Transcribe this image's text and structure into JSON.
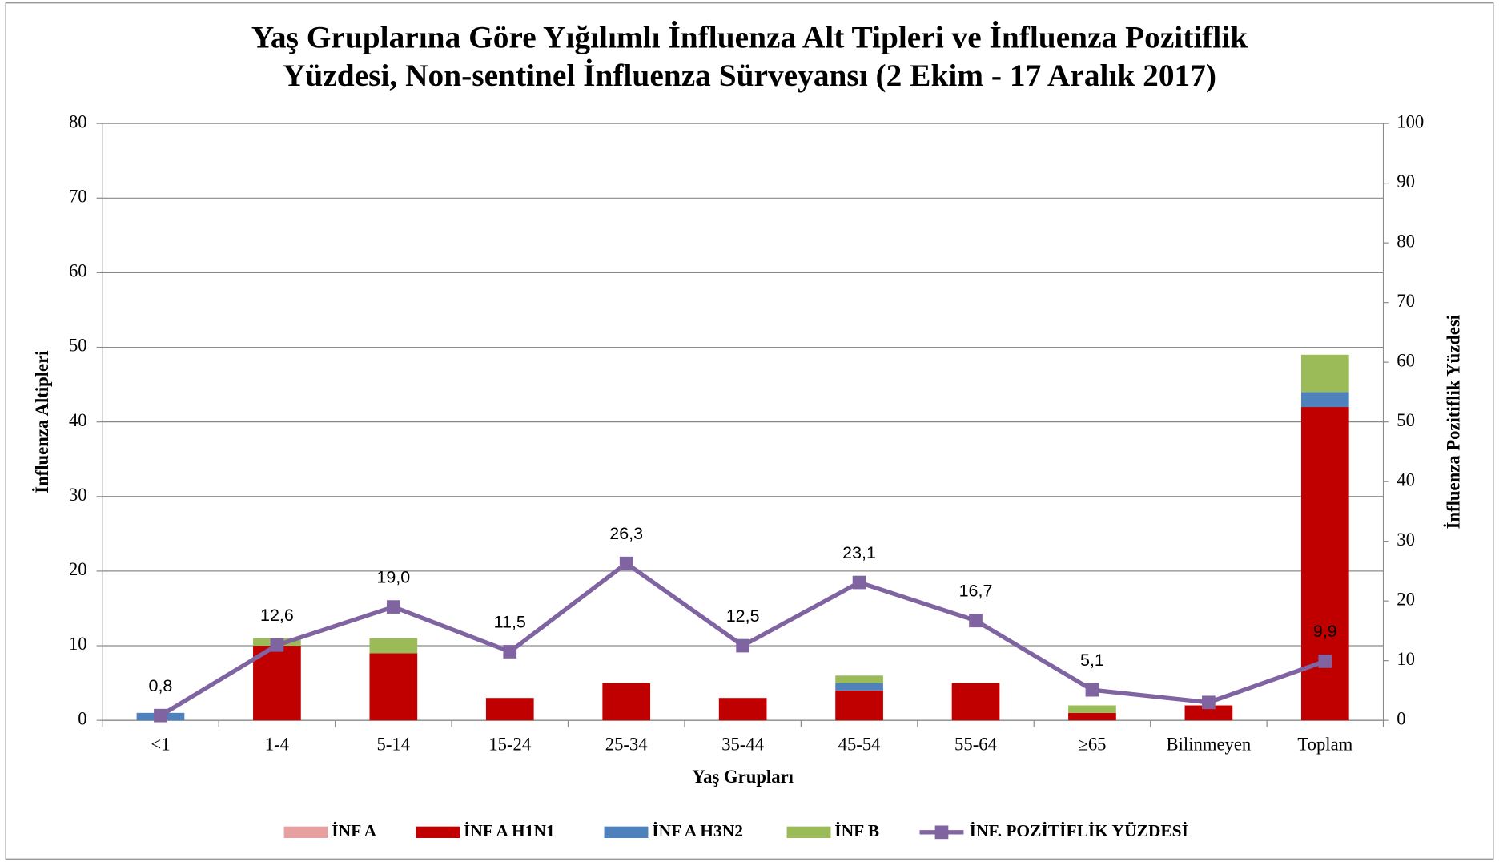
{
  "chart_data": {
    "type": "bar",
    "title": [
      "Yaş Gruplarına Göre  Yığılımlı İnfluenza Alt Tipleri ve İnfluenza Pozitiflik",
      "Yüzdesi, Non-sentinel İnfluenza Sürveyansı (2 Ekim - 17 Aralık 2017)"
    ],
    "x_label": "Yaş Grupları",
    "y_label": "İnfluenza Altipleri",
    "y2_label": "İnfluenza Pozitiflik Yüzdesi",
    "categories": [
      "<1",
      "1-4",
      "5-14",
      "15-24",
      "25-34",
      "35-44",
      "45-54",
      "55-64",
      "≥65",
      "Bilinmeyen",
      "Toplam"
    ],
    "stacked": true,
    "series": [
      {
        "name": "İNF A",
        "color": "#e6a09f",
        "values": [
          0,
          0,
          0,
          0,
          0,
          0,
          0,
          0,
          0,
          0,
          0
        ]
      },
      {
        "name": "İNF A H1N1",
        "color": "#c00000",
        "values": [
          0,
          10,
          9,
          3,
          5,
          3,
          4,
          5,
          1,
          2,
          42
        ]
      },
      {
        "name": "İNF A H3N2",
        "color": "#4f81bd",
        "values": [
          1,
          0,
          0,
          0,
          0,
          0,
          1,
          0,
          0,
          0,
          2
        ]
      },
      {
        "name": "İNF B",
        "color": "#9bbb59",
        "values": [
          0,
          1,
          2,
          0,
          0,
          0,
          1,
          0,
          1,
          0,
          5
        ]
      },
      {
        "name": "İNF. POZİTİFLİK YÜZDESİ",
        "color": "#8064a2",
        "type": "line",
        "axis": "y2",
        "values": [
          0.8,
          12.6,
          19.0,
          11.5,
          26.3,
          12.5,
          23.1,
          16.7,
          5.1,
          3.0,
          9.9
        ],
        "value_labels": [
          "0,8",
          "12,6",
          "19,0",
          "11,5",
          "26,3",
          "12,5",
          "23,1",
          "16,7",
          "5,1",
          null,
          "9,9"
        ]
      }
    ],
    "ylim": [
      0,
      80
    ],
    "yticks": [
      0,
      10,
      20,
      30,
      40,
      50,
      60,
      70,
      80
    ],
    "y2lim": [
      0,
      100
    ],
    "y2ticks": [
      0,
      10,
      20,
      30,
      40,
      50,
      60,
      70,
      80,
      90,
      100
    ],
    "grid": true,
    "legend": "bottom"
  }
}
